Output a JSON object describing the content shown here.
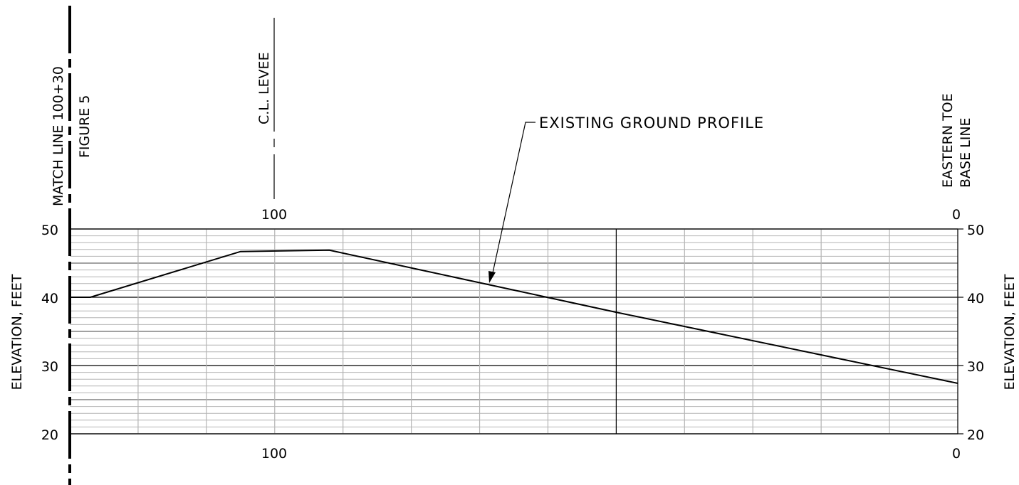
{
  "chart_data": {
    "type": "line",
    "title": "",
    "xlabel": "",
    "ylabel": "ELEVATION, FEET",
    "ylabel_right": "ELEVATION, FEET",
    "x_reversed": true,
    "xlim": [
      130,
      0
    ],
    "ylim": [
      20,
      50
    ],
    "y_major_ticks": [
      20,
      30,
      40,
      50
    ],
    "y_minor_step": 1,
    "x_gridlines": [
      120,
      110,
      100,
      90,
      80,
      70,
      60,
      50,
      40,
      30,
      20,
      10,
      0
    ],
    "x_tick_labels": [
      {
        "x": 100,
        "label": "100"
      },
      {
        "x": 0,
        "label": "0"
      }
    ],
    "grid": true,
    "series": [
      {
        "x": [
          130,
          127,
          105,
          92,
          50,
          0
        ],
        "y": [
          40.0,
          40.0,
          46.7,
          46.9,
          37.8,
          27.4
        ]
      }
    ]
  },
  "annotations": {
    "match_line": {
      "line1": "MATCH LINE 100+30",
      "line2": "FIGURE 5"
    },
    "centerline": "C.L. LEVEE",
    "eastern_toe": {
      "line1": "EASTERN TOE",
      "line2": "BASE LINE"
    },
    "profile_callout": "EXISTING GROUND PROFILE"
  },
  "colors": {
    "minor_grid": "#b4b4b4",
    "major_grid": "#000000",
    "profile": "#000000"
  }
}
